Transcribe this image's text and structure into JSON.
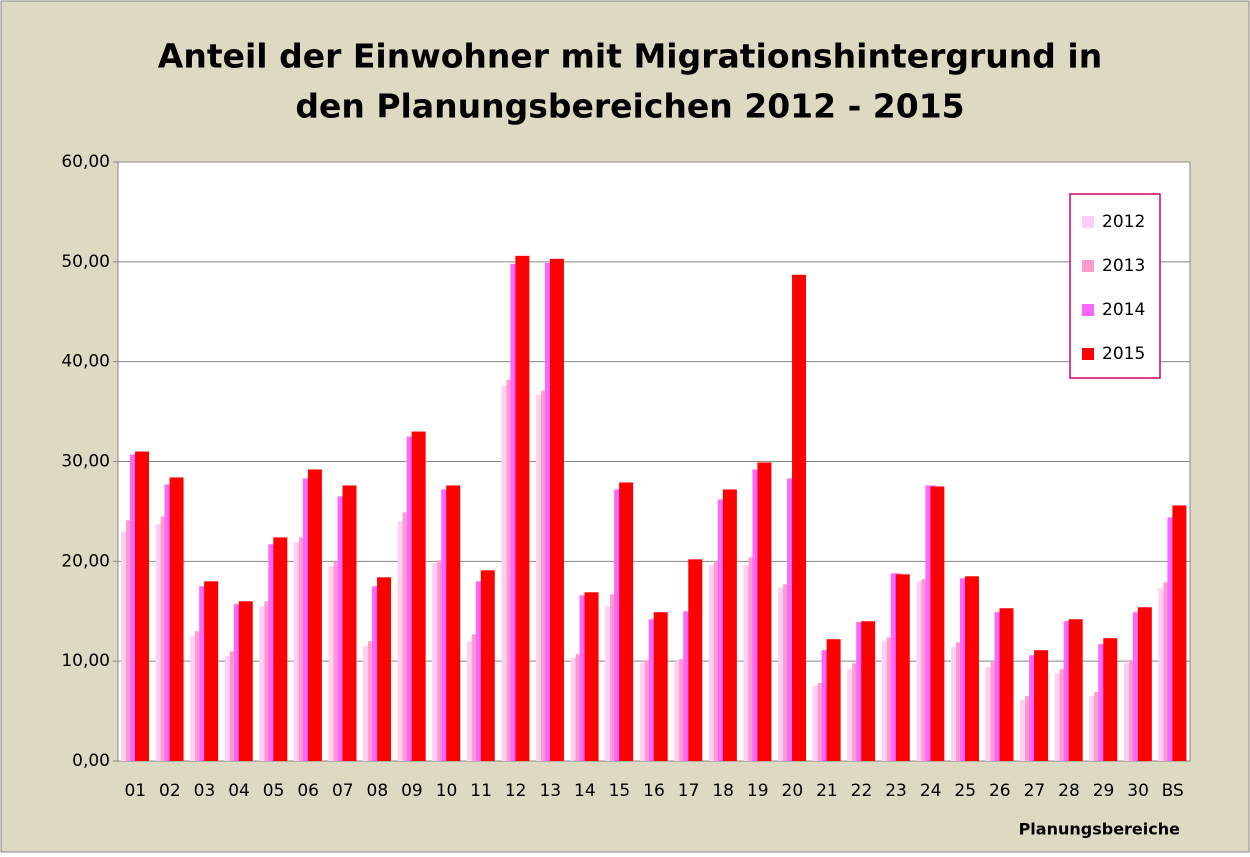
{
  "chart_data": {
    "type": "bar",
    "title": [
      "Anteil der Einwohner mit Migrationshintergrund in",
      "den Planungsbereichen 2012 - 2015"
    ],
    "x_label": "Planungsbereiche",
    "categories": [
      "01",
      "02",
      "03",
      "04",
      "05",
      "06",
      "07",
      "08",
      "09",
      "10",
      "11",
      "12",
      "13",
      "14",
      "15",
      "16",
      "17",
      "18",
      "19",
      "20",
      "21",
      "22",
      "23",
      "24",
      "25",
      "26",
      "27",
      "28",
      "29",
      "30",
      "BS"
    ],
    "series": [
      {
        "name": "2012",
        "color": "#ffd0f4",
        "values": [
          23.0,
          23.7,
          12.5,
          10.5,
          15.5,
          21.9,
          19.5,
          11.5,
          24.0,
          19.8,
          12.0,
          37.6,
          36.7,
          10.3,
          15.5,
          9.8,
          10.0,
          19.6,
          19.6,
          17.4,
          7.5,
          9.2,
          12.0,
          18.0,
          11.4,
          9.4,
          6.1,
          8.8,
          6.5,
          9.8,
          17.3
        ]
      },
      {
        "name": "2013",
        "color": "#ff9ccc",
        "values": [
          24.1,
          24.5,
          13.0,
          11.0,
          16.0,
          22.4,
          20.0,
          12.0,
          24.9,
          20.1,
          12.7,
          38.2,
          37.1,
          10.7,
          16.7,
          10.1,
          10.2,
          20.0,
          20.4,
          17.7,
          7.8,
          9.8,
          12.4,
          18.2,
          11.9,
          9.9,
          6.5,
          9.2,
          6.9,
          10.1,
          17.9
        ]
      },
      {
        "name": "2014",
        "color": "#ff66ff",
        "values": [
          30.7,
          27.7,
          17.5,
          15.7,
          21.7,
          28.3,
          26.5,
          17.5,
          32.5,
          27.2,
          18.0,
          49.8,
          49.9,
          16.6,
          27.2,
          14.2,
          15.0,
          26.2,
          29.2,
          28.3,
          11.1,
          13.9,
          18.8,
          27.6,
          18.3,
          14.9,
          10.6,
          14.0,
          11.7,
          14.9,
          24.4
        ]
      },
      {
        "name": "2015",
        "color": "#ff0000",
        "values": [
          31.0,
          28.4,
          18.0,
          16.0,
          22.4,
          29.2,
          27.6,
          18.4,
          33.0,
          27.6,
          19.1,
          50.6,
          50.3,
          16.9,
          27.9,
          14.9,
          20.2,
          27.2,
          29.9,
          48.7,
          12.2,
          14.0,
          18.7,
          27.5,
          18.5,
          15.3,
          11.1,
          14.2,
          12.3,
          15.4,
          25.6
        ]
      }
    ],
    "ylim": [
      0,
      60
    ],
    "yticks": [
      {
        "value": 0,
        "label": "0,00"
      },
      {
        "value": 10,
        "label": "10,00"
      },
      {
        "value": 20,
        "label": "20,00"
      },
      {
        "value": 30,
        "label": "30,00"
      },
      {
        "value": 40,
        "label": "40,00"
      },
      {
        "value": 50,
        "label": "50,00"
      },
      {
        "value": 60,
        "label": "60,00"
      }
    ],
    "grid": true,
    "legend": "upper right"
  }
}
